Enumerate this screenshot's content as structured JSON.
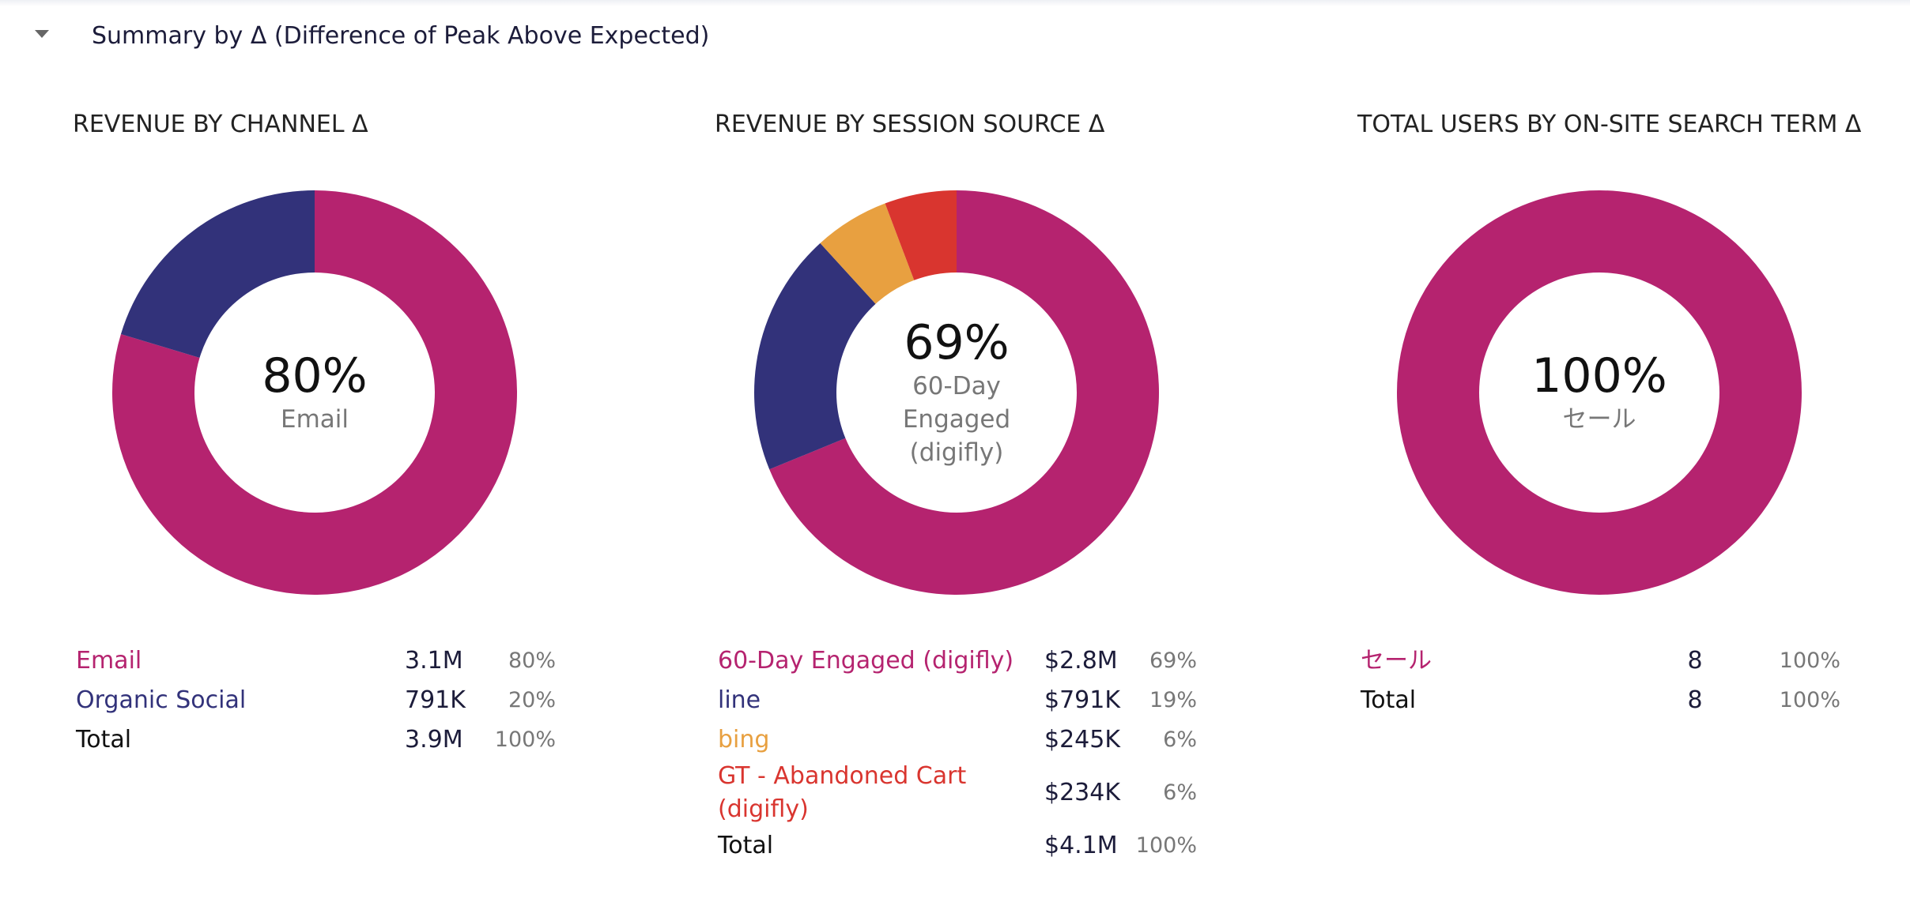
{
  "header": {
    "title": "Summary by Δ (Difference of Peak Above Expected)"
  },
  "chart_data": [
    {
      "type": "pie",
      "title": "REVENUE BY CHANNEL Δ",
      "categories": [
        "Email",
        "Organic Social"
      ],
      "colors": [
        "#b5236f",
        "#32327a"
      ],
      "values": [
        3100000,
        791000
      ],
      "value_labels": [
        "3.1M",
        "791K"
      ],
      "percent_labels": [
        "80%",
        "20%"
      ],
      "total": {
        "label": "Total",
        "value_label": "3.9M",
        "percent_label": "100%"
      }
    },
    {
      "type": "pie",
      "title": "REVENUE BY SESSION SOURCE Δ",
      "categories": [
        "60-Day Engaged (digifly)",
        "line",
        "bing",
        "GT - Abandoned Cart (digifly)"
      ],
      "colors": [
        "#b5236f",
        "#32327a",
        "#e8a040",
        "#d9352f"
      ],
      "values": [
        2800000,
        791000,
        245000,
        234000
      ],
      "value_labels": [
        "$2.8M",
        "$791K",
        "$245K",
        "$234K"
      ],
      "percent_labels": [
        "69%",
        "19%",
        "6%",
        "6%"
      ],
      "total": {
        "label": "Total",
        "value_label": "$4.1M",
        "percent_label": "100%"
      }
    },
    {
      "type": "pie",
      "title": "TOTAL USERS BY ON-SITE SEARCH TERM Δ",
      "categories": [
        "セール"
      ],
      "colors": [
        "#b5236f"
      ],
      "values": [
        8
      ],
      "percent_labels": [
        "100%"
      ],
      "total": {
        "label": "Total",
        "value_label": "8",
        "percent_label": "100%"
      }
    }
  ]
}
